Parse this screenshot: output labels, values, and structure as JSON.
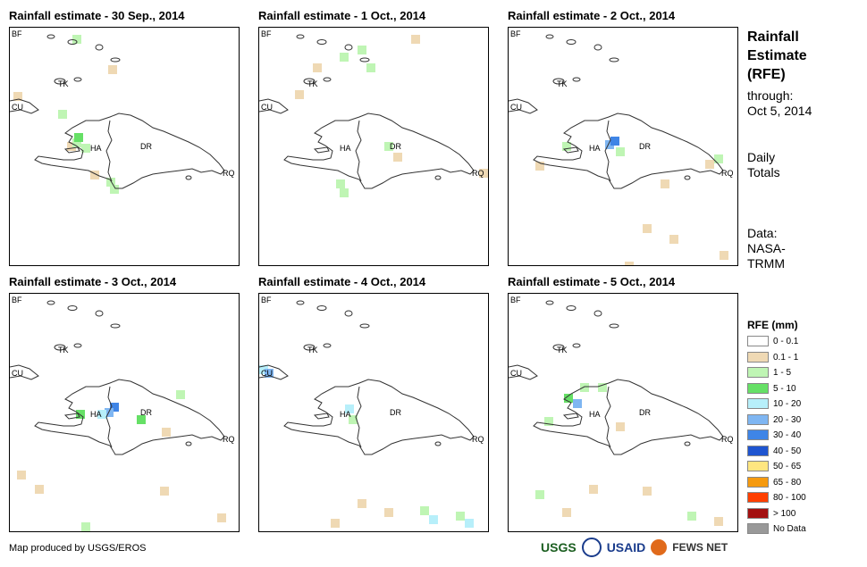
{
  "panels": [
    {
      "title": "Rainfall estimate - 30 Sep., 2014"
    },
    {
      "title": "Rainfall estimate - 1 Oct., 2014"
    },
    {
      "title": "Rainfall estimate - 2 Oct., 2014"
    },
    {
      "title": "Rainfall estimate - 3 Oct., 2014"
    },
    {
      "title": "Rainfall estimate - 4 Oct., 2014"
    },
    {
      "title": "Rainfall estimate - 5 Oct., 2014"
    }
  ],
  "map_labels": {
    "bf": "BF",
    "cu": "CU",
    "tk": "TK",
    "ha": "HA",
    "dr": "DR",
    "rq": "RQ"
  },
  "side": {
    "title_lines": [
      "Rainfall",
      "Estimate",
      "(RFE)"
    ],
    "through_lines": [
      "through:",
      "Oct 5, 2014"
    ],
    "daily_lines": [
      "Daily",
      "Totals"
    ],
    "data_lines": [
      "Data:",
      "NASA-",
      "TRMM"
    ]
  },
  "legend": {
    "title": "RFE (mm)",
    "items": [
      {
        "label": "0 - 0.1",
        "color": "#ffffff"
      },
      {
        "label": "0.1 - 1",
        "color": "#efd9b4"
      },
      {
        "label": "1 - 5",
        "color": "#bff5b4"
      },
      {
        "label": "5 - 10",
        "color": "#66e066"
      },
      {
        "label": "10 - 20",
        "color": "#b7effa"
      },
      {
        "label": "20 - 30",
        "color": "#7fb6f2"
      },
      {
        "label": "30 - 40",
        "color": "#3f85e6"
      },
      {
        "label": "40 - 50",
        "color": "#1f55d0"
      },
      {
        "label": "50 - 65",
        "color": "#ffe680"
      },
      {
        "label": "65 - 80",
        "color": "#f59a0f"
      },
      {
        "label": "80 - 100",
        "color": "#ff3f00"
      },
      {
        "label": "> 100",
        "color": "#a31010"
      },
      {
        "label": "No Data",
        "color": "#999999"
      }
    ]
  },
  "footer": {
    "credit": "Map produced by USGS/EROS"
  },
  "logos": {
    "usgs": "USGS",
    "usaid": "USAID",
    "fews": "FEWS NET"
  }
}
